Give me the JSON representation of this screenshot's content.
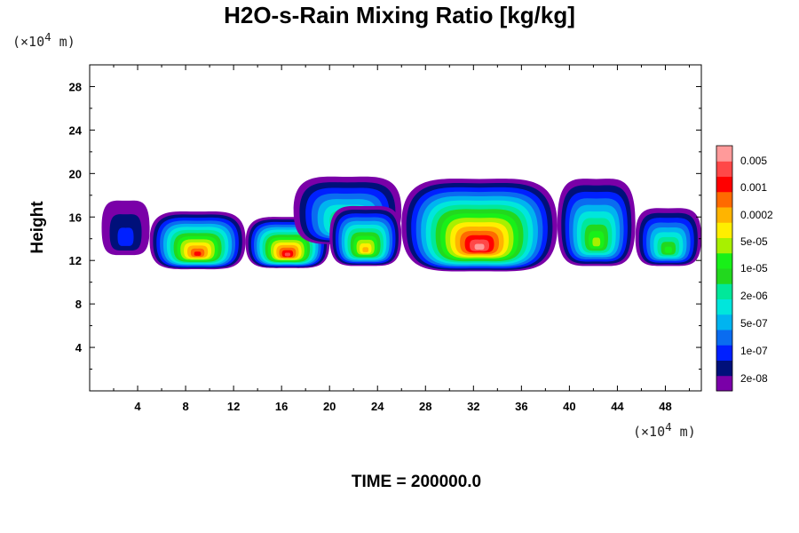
{
  "chart_data": {
    "type": "heatmap",
    "title": "H2O-s-Rain Mixing Ratio [kg/kg]",
    "ylabel": "Height",
    "x_unit_prefix": "(×10",
    "x_unit_exp": "4",
    "x_unit_suffix": " m)",
    "y_unit_prefix": "(×10",
    "y_unit_exp": "4",
    "y_unit_suffix": " m)",
    "x_ticks": [
      "4",
      "8",
      "12",
      "16",
      "20",
      "24",
      "28",
      "32",
      "36",
      "40",
      "44",
      "48"
    ],
    "y_ticks": [
      "4",
      "8",
      "12",
      "16",
      "20",
      "24",
      "28"
    ],
    "xlim": [
      0,
      51
    ],
    "ylim": [
      0,
      30
    ],
    "levels": [
      "0.005",
      "0.001",
      "0.0002",
      "5e-05",
      "1e-05",
      "2e-06",
      "5e-07",
      "1e-07",
      "2e-08"
    ],
    "colorbar_colors": [
      "#7a00a8",
      "#00107a",
      "#0020ff",
      "#0a6cf0",
      "#00b4f0",
      "#00e6dc",
      "#00e89a",
      "#22d81e",
      "#18f018",
      "#a8f000",
      "#ffee00",
      "#ffb400",
      "#ff6a00",
      "#ff0000",
      "#ff4848",
      "#ff9a9a"
    ],
    "cloud_bands": [
      {
        "x0": 1.0,
        "x1": 5.0,
        "ybot": 12.5,
        "ytop": 17.5,
        "peak": 2
      },
      {
        "x0": 5.0,
        "x1": 13.0,
        "ybot": 11.2,
        "ytop": 16.5,
        "peak": 13
      },
      {
        "x0": 13.0,
        "x1": 20.0,
        "ybot": 11.3,
        "ytop": 16.0,
        "peak": 14
      },
      {
        "x0": 17.0,
        "x1": 26.0,
        "ybot": 13.5,
        "ytop": 19.7,
        "peak": 8
      },
      {
        "x0": 20.0,
        "x1": 26.0,
        "ybot": 11.5,
        "ytop": 17.0,
        "peak": 11
      },
      {
        "x0": 26.0,
        "x1": 39.0,
        "ybot": 11.0,
        "ytop": 19.5,
        "peak": 15
      },
      {
        "x0": 39.0,
        "x1": 45.5,
        "ybot": 11.5,
        "ytop": 19.5,
        "peak": 9
      },
      {
        "x0": 45.5,
        "x1": 51.0,
        "ybot": 11.5,
        "ytop": 16.8,
        "peak": 8
      }
    ]
  },
  "time_label": "TIME = 200000.0"
}
